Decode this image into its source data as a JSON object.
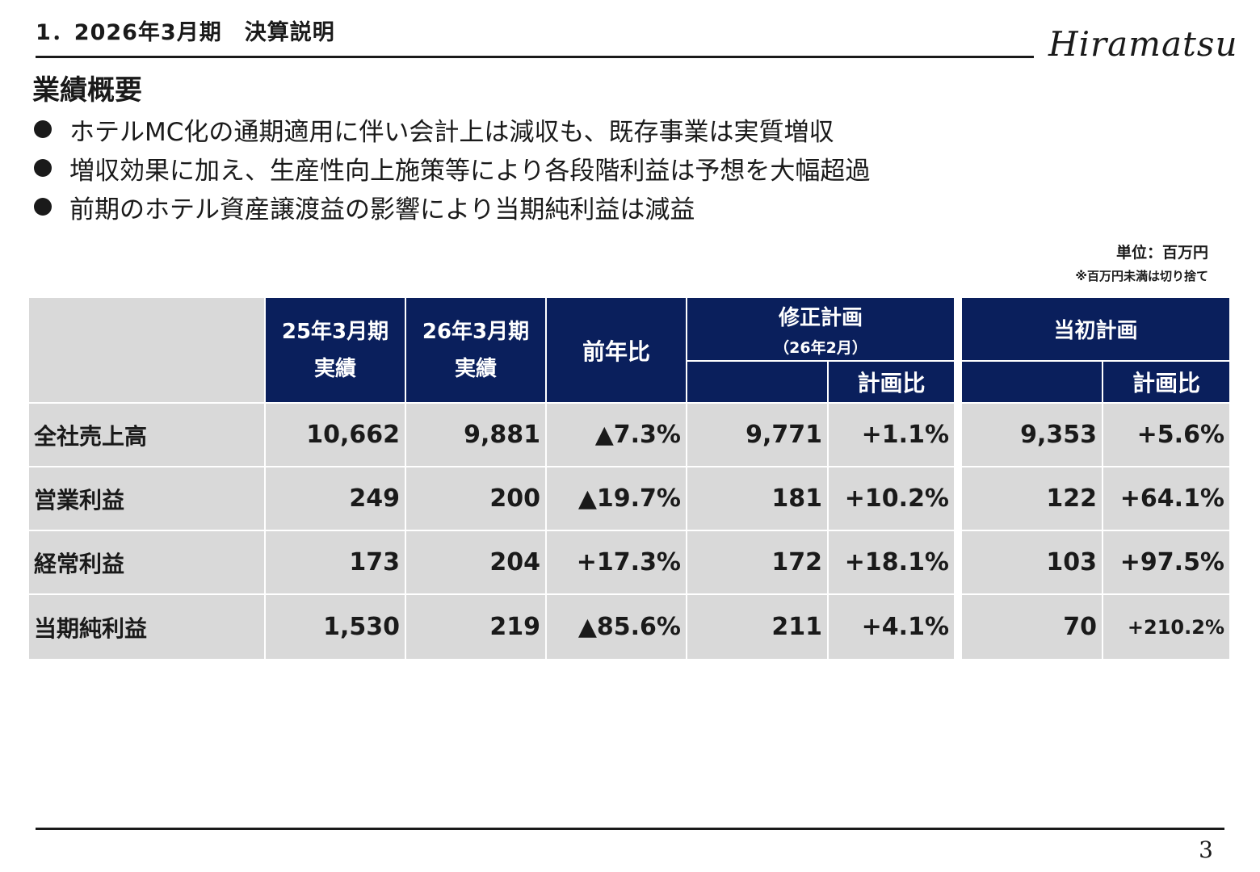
{
  "header": {
    "section_title": "1．2026年3月期　決算説明",
    "logo": "Hiramatsu"
  },
  "heading": "業績概要",
  "bullets": [
    "ホテルMC化の通期適用に伴い会計上は減収も、既存事業は実質増収",
    "増収効果に加え、生産性向上施策等により各段階利益は予想を大幅超過",
    "前期のホテル資産譲渡益の影響により当期純利益は減益"
  ],
  "unit": {
    "label": "単位：百万円",
    "note": "※百万円未満は切り捨て"
  },
  "table": {
    "headers": {
      "fy25_line1": "25年3月期",
      "fy25_line2": "実績",
      "fy26_line1": "26年3月期",
      "fy26_line2": "実績",
      "yoy": "前年比",
      "revised_plan": "修正計画",
      "revised_plan_date": "（26年2月）",
      "revised_ratio": "計画比",
      "initial_plan": "当初計画",
      "initial_ratio": "計画比"
    },
    "rows": [
      {
        "label": "全社売上高",
        "fy25": "10,662",
        "fy26": "9,881",
        "yoy": "▲7.3%",
        "revised": "9,771",
        "revised_ratio": "+1.1%",
        "initial": "9,353",
        "initial_ratio": "+5.6%"
      },
      {
        "label": "営業利益",
        "fy25": "249",
        "fy26": "200",
        "yoy": "▲19.7%",
        "revised": "181",
        "revised_ratio": "+10.2%",
        "initial": "122",
        "initial_ratio": "+64.1%"
      },
      {
        "label": "経常利益",
        "fy25": "173",
        "fy26": "204",
        "yoy": "+17.3%",
        "revised": "172",
        "revised_ratio": "+18.1%",
        "initial": "103",
        "initial_ratio": "+97.5%"
      },
      {
        "label": "当期純利益",
        "fy25": "1,530",
        "fy26": "219",
        "yoy": "▲85.6%",
        "revised": "211",
        "revised_ratio": "+4.1%",
        "initial": "70",
        "initial_ratio": "+210.2%"
      }
    ]
  },
  "page_number": "3",
  "colors": {
    "header_bg": "#0a1f5c",
    "cell_bg": "#d9d9d9"
  }
}
